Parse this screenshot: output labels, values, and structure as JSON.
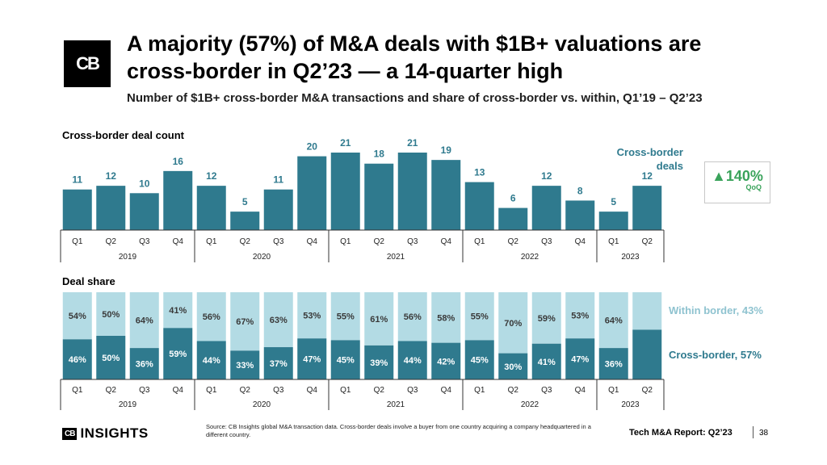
{
  "logo": {
    "glyph": "CB",
    "icon": "cb-logo-icon"
  },
  "header": {
    "title": "A majority (57%) of M&A deals with $1B+ valuations are\ncross-border in Q2’23 — a 14-quarter high",
    "subtitle": "Number of $1B+ cross-border M&A transactions and share of cross-border vs. within, Q1’19 – Q2’23"
  },
  "colors": {
    "cross_border": "#2f7a8e",
    "within_border": "#b3dbe4",
    "qoq_green": "#3aa35b"
  },
  "qoq": {
    "value": "▲140%",
    "label": "QoQ"
  },
  "chart_data": [
    {
      "type": "bar",
      "title": "Cross-border deal count",
      "categories": [
        "Q1",
        "Q2",
        "Q3",
        "Q4",
        "Q1",
        "Q2",
        "Q3",
        "Q4",
        "Q1",
        "Q2",
        "Q3",
        "Q4",
        "Q1",
        "Q2",
        "Q3",
        "Q4",
        "Q1",
        "Q2"
      ],
      "years": [
        {
          "label": "2019",
          "count": 4
        },
        {
          "label": "2020",
          "count": 4
        },
        {
          "label": "2021",
          "count": 4
        },
        {
          "label": "2022",
          "count": 4
        },
        {
          "label": "2023",
          "count": 2
        }
      ],
      "values": [
        11,
        12,
        10,
        16,
        12,
        5,
        11,
        20,
        21,
        18,
        21,
        19,
        13,
        6,
        12,
        8,
        5,
        12
      ],
      "ylim": [
        0,
        21
      ],
      "annotation": "Cross-border\ndeals"
    },
    {
      "type": "bar",
      "stacked": true,
      "title": "Deal share",
      "categories": [
        "Q1",
        "Q2",
        "Q3",
        "Q4",
        "Q1",
        "Q2",
        "Q3",
        "Q4",
        "Q1",
        "Q2",
        "Q3",
        "Q4",
        "Q1",
        "Q2",
        "Q3",
        "Q4",
        "Q1",
        "Q2"
      ],
      "years": [
        {
          "label": "2019",
          "count": 4
        },
        {
          "label": "2020",
          "count": 4
        },
        {
          "label": "2021",
          "count": 4
        },
        {
          "label": "2022",
          "count": 4
        },
        {
          "label": "2023",
          "count": 2
        }
      ],
      "ylim": [
        0,
        100
      ],
      "series": [
        {
          "name": "Cross-border, 57%",
          "values": [
            46,
            50,
            36,
            59,
            44,
            33,
            37,
            47,
            45,
            39,
            44,
            42,
            45,
            30,
            41,
            47,
            36,
            57
          ],
          "labels": [
            "46%",
            "50%",
            "36%",
            "59%",
            "44%",
            "33%",
            "37%",
            "47%",
            "45%",
            "39%",
            "44%",
            "42%",
            "45%",
            "30%",
            "41%",
            "47%",
            "36%",
            ""
          ]
        },
        {
          "name": "Within border, 43%",
          "values": [
            54,
            50,
            64,
            41,
            56,
            67,
            63,
            53,
            55,
            61,
            56,
            58,
            55,
            70,
            59,
            53,
            64,
            43
          ],
          "labels": [
            "54%",
            "50%",
            "64%",
            "41%",
            "56%",
            "67%",
            "63%",
            "53%",
            "55%",
            "61%",
            "56%",
            "58%",
            "55%",
            "70%",
            "59%",
            "53%",
            "64%",
            ""
          ]
        }
      ]
    }
  ],
  "footer": {
    "logo_mark": "CB",
    "logo_text": "INSIGHTS",
    "source": "Source: CB Insights global M&A transaction data. Cross-border deals involve a buyer from one country acquiring a company headquartered in a different country.",
    "report": "Tech M&A Report: Q2’23",
    "page": "38"
  }
}
